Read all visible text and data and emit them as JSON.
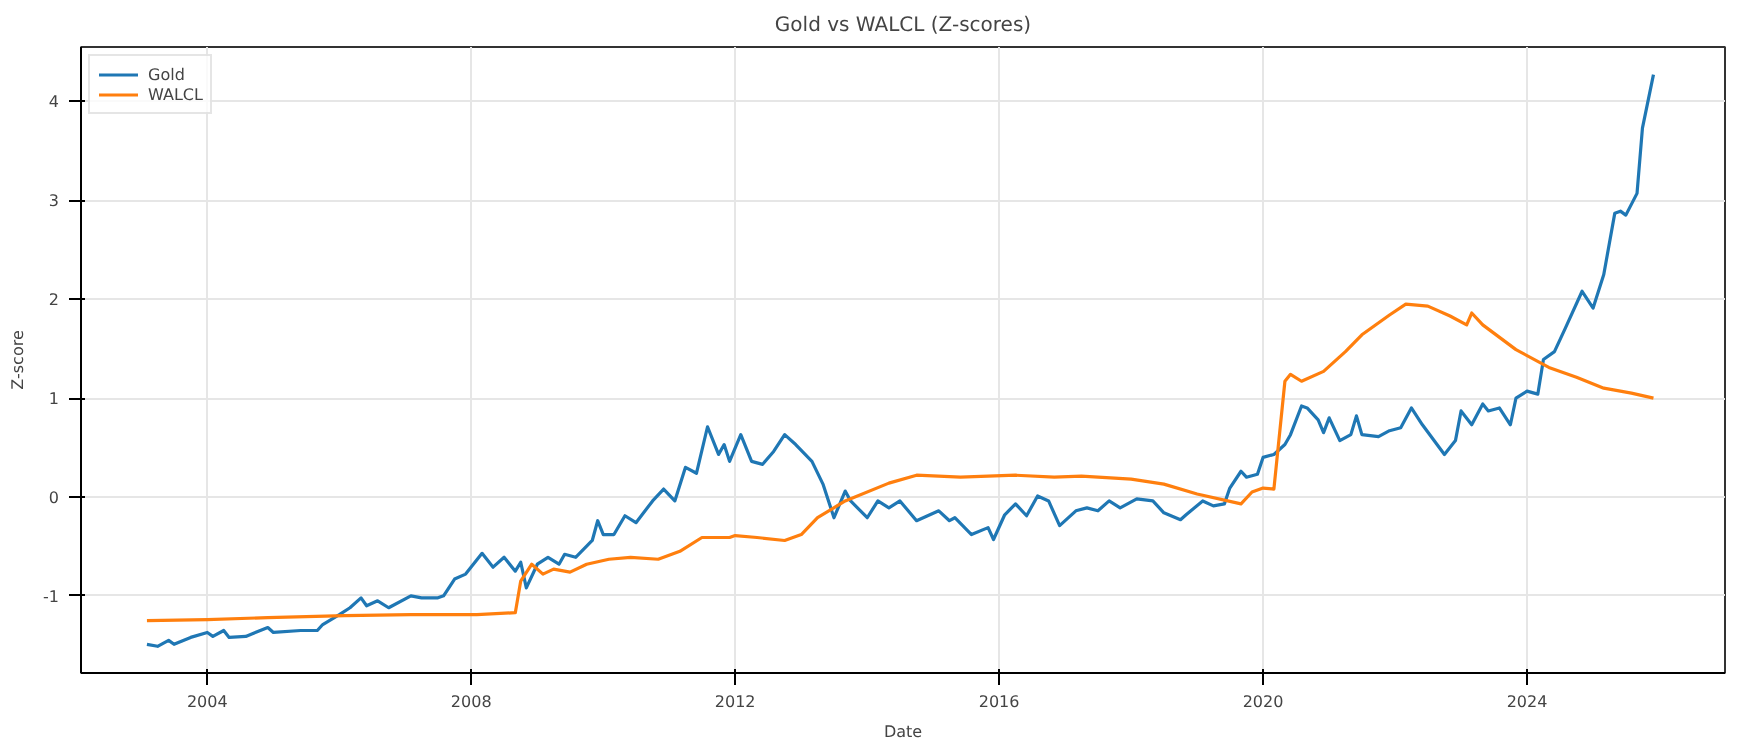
{
  "chart_data": {
    "type": "line",
    "title": "Gold vs WALCL (Z-scores)",
    "xlabel": "Date",
    "ylabel": "Z-score",
    "xlim": [
      "2002-02",
      "2027-01"
    ],
    "xticks": [
      "2004",
      "2008",
      "2012",
      "2016",
      "2020",
      "2024"
    ],
    "ylim": [
      -1.78,
      4.55
    ],
    "yticks": [
      -1,
      0,
      1,
      2,
      3,
      4
    ],
    "grid": true,
    "legend": "top left",
    "line_style": "solid",
    "series": [
      {
        "name": "Gold",
        "color": "#1f77b4",
        "x": [
          "2003-02",
          "2003-04",
          "2003-06",
          "2003-07",
          "2003-10",
          "2004-01",
          "2004-02",
          "2004-04",
          "2004-05",
          "2004-08",
          "2004-12",
          "2005-01",
          "2005-06",
          "2005-09",
          "2005-10",
          "2006-01",
          "2006-03",
          "2006-05",
          "2006-06",
          "2006-08",
          "2006-10",
          "2007-02",
          "2007-04",
          "2007-07",
          "2007-08",
          "2007-10",
          "2007-12",
          "2008-03",
          "2008-05",
          "2008-07",
          "2008-09",
          "2008-10",
          "2008-11",
          "2009-01",
          "2009-03",
          "2009-05",
          "2009-06",
          "2009-08",
          "2009-11",
          "2009-12",
          "2010-01",
          "2010-03",
          "2010-05",
          "2010-07",
          "2010-10",
          "2010-12",
          "2011-02",
          "2011-04",
          "2011-06",
          "2011-08",
          "2011-10",
          "2011-11",
          "2011-12",
          "2012-02",
          "2012-04",
          "2012-06",
          "2012-08",
          "2012-10",
          "2012-12",
          "2013-03",
          "2013-05",
          "2013-07",
          "2013-09",
          "2013-10",
          "2014-01",
          "2014-03",
          "2014-05",
          "2014-07",
          "2014-10",
          "2015-02",
          "2015-04",
          "2015-05",
          "2015-08",
          "2015-11",
          "2015-12",
          "2016-02",
          "2016-04",
          "2016-06",
          "2016-08",
          "2016-10",
          "2016-12",
          "2017-03",
          "2017-05",
          "2017-07",
          "2017-09",
          "2017-11",
          "2018-02",
          "2018-05",
          "2018-07",
          "2018-10",
          "2018-11",
          "2019-02",
          "2019-04",
          "2019-06",
          "2019-07",
          "2019-09",
          "2019-10",
          "2019-12",
          "2020-01",
          "2020-03",
          "2020-05",
          "2020-06",
          "2020-08",
          "2020-09",
          "2020-11",
          "2020-12",
          "2021-01",
          "2021-03",
          "2021-05",
          "2021-06",
          "2021-07",
          "2021-10",
          "2021-12",
          "2022-02",
          "2022-04",
          "2022-06",
          "2022-10",
          "2022-12",
          "2023-01",
          "2023-03",
          "2023-05",
          "2023-06",
          "2023-08",
          "2023-10",
          "2023-11",
          "2024-01",
          "2024-03",
          "2024-04",
          "2024-06",
          "2024-08",
          "2024-11",
          "2025-01",
          "2025-03",
          "2025-05",
          "2025-06",
          "2025-07",
          "2025-09",
          "2025-10",
          "2025-12"
        ],
        "values": [
          -1.49,
          -1.51,
          -1.45,
          -1.49,
          -1.42,
          -1.37,
          -1.41,
          -1.35,
          -1.42,
          -1.41,
          -1.32,
          -1.37,
          -1.35,
          -1.35,
          -1.29,
          -1.19,
          -1.12,
          -1.02,
          -1.1,
          -1.05,
          -1.12,
          -1.0,
          -1.02,
          -1.02,
          -1.0,
          -0.83,
          -0.78,
          -0.57,
          -0.71,
          -0.61,
          -0.75,
          -0.66,
          -0.92,
          -0.68,
          -0.61,
          -0.68,
          -0.58,
          -0.61,
          -0.44,
          -0.24,
          -0.38,
          -0.38,
          -0.19,
          -0.26,
          -0.04,
          0.08,
          -0.04,
          0.3,
          0.24,
          0.71,
          0.43,
          0.53,
          0.36,
          0.63,
          0.36,
          0.33,
          0.46,
          0.63,
          0.53,
          0.36,
          0.13,
          -0.21,
          0.06,
          -0.04,
          -0.21,
          -0.04,
          -0.11,
          -0.04,
          -0.24,
          -0.14,
          -0.24,
          -0.21,
          -0.38,
          -0.31,
          -0.43,
          -0.18,
          -0.07,
          -0.19,
          0.01,
          -0.04,
          -0.29,
          -0.14,
          -0.11,
          -0.14,
          -0.04,
          -0.11,
          -0.02,
          -0.04,
          -0.16,
          -0.23,
          -0.18,
          -0.04,
          -0.09,
          -0.07,
          0.09,
          0.26,
          0.2,
          0.23,
          0.4,
          0.43,
          0.53,
          0.63,
          0.92,
          0.9,
          0.78,
          0.65,
          0.8,
          0.57,
          0.63,
          0.82,
          0.63,
          0.61,
          0.67,
          0.7,
          0.9,
          0.73,
          0.43,
          0.57,
          0.87,
          0.73,
          0.94,
          0.87,
          0.9,
          0.73,
          1.0,
          1.07,
          1.04,
          1.39,
          1.47,
          1.71,
          2.08,
          1.91,
          2.25,
          2.87,
          2.89,
          2.85,
          3.07,
          3.73,
          4.27
        ]
      },
      {
        "name": "WALCL",
        "color": "#ff7f0e",
        "x": [
          "2003-02",
          "2004-01",
          "2004-12",
          "2006-02",
          "2007-02",
          "2008-02",
          "2008-09",
          "2008-10",
          "2008-12",
          "2009-02",
          "2009-04",
          "2009-07",
          "2009-10",
          "2010-02",
          "2010-06",
          "2010-11",
          "2011-03",
          "2011-07",
          "2011-12",
          "2012-01",
          "2012-05",
          "2012-10",
          "2013-01",
          "2013-04",
          "2013-09",
          "2014-05",
          "2014-10",
          "2015-06",
          "2016-04",
          "2016-11",
          "2017-04",
          "2018-01",
          "2018-07",
          "2019-01",
          "2019-09",
          "2019-11",
          "2020-01",
          "2020-03",
          "2020-05",
          "2020-06",
          "2020-08",
          "2020-12",
          "2021-04",
          "2021-07",
          "2021-12",
          "2022-03",
          "2022-07",
          "2022-11",
          "2023-02",
          "2023-03",
          "2023-05",
          "2023-11",
          "2024-05",
          "2024-10",
          "2025-03",
          "2025-08",
          "2025-12"
        ],
        "values": [
          -1.25,
          -1.24,
          -1.22,
          -1.2,
          -1.19,
          -1.19,
          -1.17,
          -0.85,
          -0.68,
          -0.78,
          -0.73,
          -0.76,
          -0.68,
          -0.63,
          -0.61,
          -0.63,
          -0.55,
          -0.41,
          -0.41,
          -0.39,
          -0.41,
          -0.44,
          -0.38,
          -0.21,
          -0.04,
          0.14,
          0.22,
          0.2,
          0.22,
          0.2,
          0.21,
          0.18,
          0.13,
          0.03,
          -0.07,
          0.05,
          0.09,
          0.08,
          1.17,
          1.24,
          1.17,
          1.27,
          1.47,
          1.64,
          1.84,
          1.95,
          1.93,
          1.83,
          1.74,
          1.86,
          1.74,
          1.49,
          1.31,
          1.21,
          1.1,
          1.05,
          1.0
        ]
      }
    ]
  }
}
